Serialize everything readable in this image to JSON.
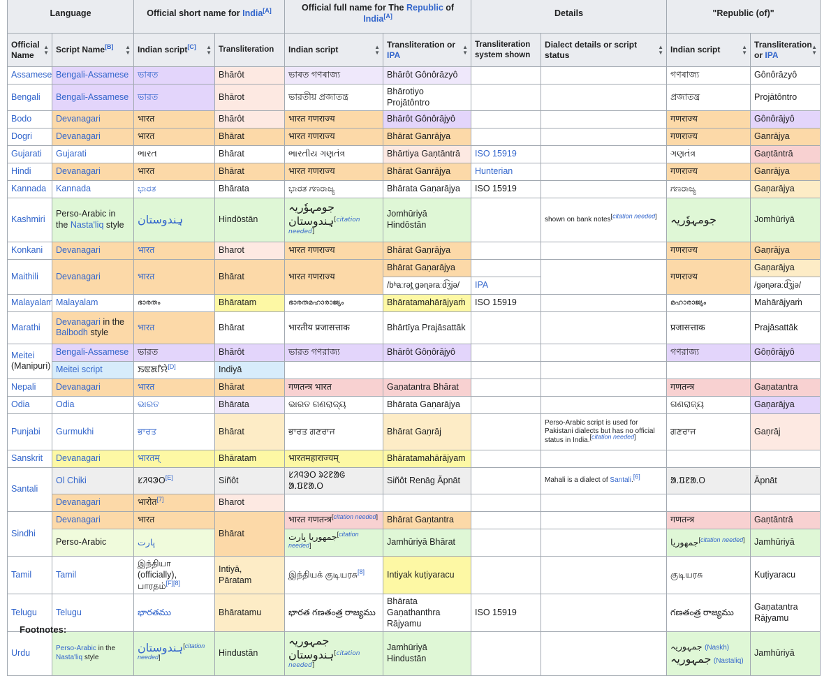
{
  "header": {
    "language": "Language",
    "short_name_prefix": "Official short name for ",
    "india_link": "India",
    "note_a": "[A]",
    "full_name_prefix": "Official full name for The ",
    "republic_link": "Republic",
    "full_name_mid": " of ",
    "details": "Details",
    "republic_of": "\"Republic (of)\"",
    "official_name": "Official Name",
    "script_name": "Script Name",
    "note_b": "[B]",
    "indian_script": "Indian script",
    "note_c": "[C]",
    "transliteration": "Transliteration",
    "translit_or": "Transliteration or ",
    "ipa": "IPA",
    "translit_system": "Transliteration system shown",
    "dialect_details": "Dialect details or script status",
    "translit_or2": "Transliteration or "
  },
  "rows": {
    "assamese": {
      "name": "Assamese",
      "script": "Bengali-Assamese",
      "short": "ভাৰত",
      "short_tr": "Bhārôt",
      "full": "ভাৰত গণৰাজ্য",
      "full_tr": "Bhārôt Gônôrāzyô",
      "rep": "গণৰাজ্য",
      "rep_tr": "Gônôrāzyô"
    },
    "bengali": {
      "name": "Bengali",
      "script": "Bengali-Assamese",
      "short": "ভারত",
      "short_tr": "Bhārot",
      "full": "ভারতীয় প্রজাতন্ত্র",
      "full_tr": "Bhārotiyo Projātôntro",
      "rep": "প্রজাতন্ত্র",
      "rep_tr": "Projātôntro"
    },
    "bodo": {
      "name": "Bodo",
      "script": "Devanagari",
      "short": "भारत",
      "short_tr": "Bhārôt",
      "full": "भारत गणराज्य",
      "full_tr": "Bhārôt Gônôrājyô",
      "rep": "गणराज्य",
      "rep_tr": "Gônôrājyô"
    },
    "dogri": {
      "name": "Dogri",
      "script": "Devanagari",
      "short": "भारत",
      "short_tr": "Bhārat",
      "full": "भारत गणराज्य",
      "full_tr": "Bhārat Ganrājya",
      "rep": "गणराज्य",
      "rep_tr": "Ganrājya"
    },
    "gujarati": {
      "name": "Gujarati",
      "script": "Gujarati",
      "short": "ભારત",
      "short_tr": "Bhārat",
      "full": "ભારતીય ગણતંત્ર",
      "full_tr": "Bhārtiya Gaṇtāntrā",
      "system": "ISO 15919",
      "rep": "ગણતંત્ર",
      "rep_tr": "Gaṇtāntrā"
    },
    "hindi": {
      "name": "Hindi",
      "script": "Devanagari",
      "short": "भारत",
      "short_tr": "Bhārat",
      "full": "भारत गणराज्य",
      "full_tr": "Bhārat Ganrājya",
      "system": "Hunterian",
      "rep": "गणराज्य",
      "rep_tr": "Ganrājya"
    },
    "kannada": {
      "name": "Kannada",
      "script": "Kannada",
      "short": "ಭಾರತ",
      "short_tr": "Bhārata",
      "full": "ಭಾರತ ಗಣರಾಜ್ಯ",
      "full_tr": "Bhārata Gaṇarājya",
      "system": "ISO 15919",
      "rep": "ಗಣರಾಜ್ಯ",
      "rep_tr": "Gaṇarājya"
    },
    "kashmiri": {
      "name": "Kashmiri",
      "script_a": "Perso-Arabic in the ",
      "script_link": "Nasta'liq",
      "script_b": " style",
      "short": "ہِندوستان",
      "short_tr": "Hindōstān",
      "full_a": "جومہوٗریہ",
      "full_b": "ہِندوستان",
      "cn": "citation needed",
      "full_tr": "Jomhūriyā Hindōstān",
      "detail": "shown on bank notes",
      "rep": "جومہوٗریہ",
      "rep_tr": "Jomhūriyā"
    },
    "konkani": {
      "name": "Konkani",
      "script": "Devanagari",
      "short": "भारत",
      "short_tr": "Bharot",
      "full": "भारत गणराज्य",
      "full_tr": "Bhārat Gaṇrājya",
      "rep": "गणराज्य",
      "rep_tr": "Gaṇrājya"
    },
    "maithili": {
      "name": "Maithili",
      "script": "Devanagari",
      "short": "भारत",
      "short_tr": "Bhārat",
      "full": "भारत गणराज्य",
      "full_tr": "Bhārat Gaṇarājya",
      "full_ipa": "/bʱaːrət̪ gəɳəraːd͡ʒjə/",
      "system_ipa": "IPA",
      "rep": "गणराज्य",
      "rep_tr": "Gaṇarājya",
      "rep_ipa": "/gəɳəraːd͡ʒjə/"
    },
    "malayalam": {
      "name": "Malayalam",
      "script": "Malayalam",
      "short": "ഭാരതം",
      "short_tr": "Bhāratam",
      "full": "ഭാരതമഹാരാജ്യം",
      "full_tr": "Bhāratamahārājyaṁ",
      "system": "ISO 15919",
      "rep": "മഹാരാജ്യം",
      "rep_tr": "Mahārājyaṁ"
    },
    "marathi": {
      "name": "Marathi",
      "script": "Devanagari",
      "script_mid": " in the ",
      "script_link2": "Balbodh",
      "script_end": " style",
      "short": "भारत",
      "short_tr": "Bhārat",
      "full": "भारतीय प्रजासत्ताक",
      "full_tr": "Bhārtīya Prajāsattāk",
      "rep": "प्रजासत्ताक",
      "rep_tr": "Prajāsattāk"
    },
    "meitei": {
      "name": "Meitei",
      "name2": "(Manipuri)",
      "script": "Bengali-Assamese",
      "short": "ভারত",
      "short_tr": "Bhārôt",
      "full": "ভারত গণরাজ্য",
      "full_tr": "Bhārôt Gôṇôrājyô",
      "rep": "গণরাজ্য",
      "rep_tr": "Gôṇôrājyô",
      "script2": "Meitei script",
      "short2": "ꯏꯟꯗꯤꯌꯥ",
      "note_d": "[D]",
      "short2_tr": "Indiyā"
    },
    "nepali": {
      "name": "Nepali",
      "script": "Devanagari",
      "short": "भारत",
      "short_tr": "Bhārat",
      "full": "गणतन्त्र भारत",
      "full_tr": "Gaṇatantra Bhārat",
      "rep": "गणतन्त्र",
      "rep_tr": "Gaṇatantra"
    },
    "odia": {
      "name": "Odia",
      "script": "Odia",
      "short": "ଭାରତ",
      "short_tr": "Bhārata",
      "full": "ଭାରତ ଗଣରାଜ୍ୟ",
      "full_tr": "Bhārata Gaṇarājya",
      "rep": "ଗଣରାଜ୍ୟ",
      "rep_tr": "Gaṇarājya"
    },
    "punjabi": {
      "name": "Punjabi",
      "script": "Gurmukhi",
      "short": "ਭਾਰਤ",
      "short_tr": "Bhārat",
      "full": "ਭਾਰਤ ਗਣਰਾਜ",
      "full_tr": "Bhārat Gaṇrāj",
      "detail": "Perso-Arabic script is used for Pakistani dialects but has no official status in India.",
      "rep": "ਗਣਰਾਜ",
      "rep_tr": "Gaṇrāj"
    },
    "sanskrit": {
      "name": "Sanskrit",
      "script": "Devanagari",
      "short": "भारतम्",
      "short_tr": "Bhāratam",
      "full": "भारतमहाराज्यम्",
      "full_tr": "Bhāratamahārājyam"
    },
    "santali": {
      "name": "Santali",
      "script": "Ol Chiki",
      "short": "ᱥᱤᱧᱳᱛ",
      "note_e": "[E]",
      "short_tr": "Siñôt",
      "full": "ᱥᱤᱧᱳᱛ ᱨᱮᱱᱟᱜ ᱟᱹᱯᱱᱟᱹᱛ",
      "full_tr": "Siñôt Renāg Ăpnāt",
      "detail_a": "Mahali is a dialect of ",
      "detail_link": "Santali",
      "note_6": "[6]",
      "rep": "ᱟᱹᱯᱱᱟᱹᱛ",
      "rep_tr": "Ăpnāt",
      "script2": "Devanagari",
      "short2": "भारोत",
      "note_7": "[7]",
      "short2_tr": "Bharot"
    },
    "sindhi": {
      "name": "Sindhi",
      "script": "Devanagari",
      "short": "भारत",
      "short_tr": "Bhārat",
      "full": "भारत गणतन्त्र",
      "full_tr": "Bhārat Gaṇtantra",
      "rep": "गणतन्त्र",
      "rep_tr": "Gaṇtāntrā",
      "script2": "Perso-Arabic",
      "short2": "ڀارت",
      "full2": "جمهوريا ڀارت",
      "full2_tr": "Jamhūriyā Bhārat",
      "rep2": "جمهوريا",
      "rep2_tr": "Jamhūriyā"
    },
    "tamil": {
      "name": "Tamil",
      "script": "Tamil",
      "short_a": "இந்தியா (officially),",
      "short_b": "பாரதம்",
      "note_f": "[F]",
      "note_8": "[8]",
      "short_tr_a": "Intiyā,",
      "short_tr_b": "Pāratam",
      "full": "இந்தியக் குடியரசு",
      "full_tr": "Intiyak kuṭiyaracu",
      "rep": "குடியரசு",
      "rep_tr": "Kuṭiyaracu"
    },
    "telugu": {
      "name": "Telugu",
      "script": "Telugu",
      "short": "భారతము",
      "short_tr": "Bhāratamu",
      "full": "భారత గణతంత్ర రాజ్యము",
      "full_tr_a": "Bhārata Gaṇathanthra",
      "full_tr_b": "Rājyamu",
      "system": "ISO 15919",
      "rep": "గణతంత్ర రాజ్యము",
      "rep_tr_a": "Gaṇatantra",
      "rep_tr_b": "Rājyamu"
    },
    "urdu": {
      "name": "Urdu",
      "script_link": "Perso-Arabic",
      "script_mid": " in the ",
      "script_link2": "Nasta'liq",
      "script_end": " style",
      "short": "ہندوستان",
      "short_tr": "Hindustān",
      "full_a": "جمہوریہ",
      "full_b": "ہندوستان",
      "full_tr": "Jamhūriyā Hindustān",
      "rep_a": "جمہوریہ",
      "rep_a_note": "(Naskh)",
      "rep_b": "جمہوریہ",
      "rep_b_note": "(Nastaliq)",
      "rep_tr": "Jamhūriyā"
    }
  },
  "citation_needed": "citation needed",
  "footnotes_label": "Footnotes:",
  "colors": {
    "orange": "#fcd9a8",
    "violet": "#e3d5fb",
    "green": "#dff7d6",
    "pink": "#f8d1d1",
    "yellow": "#fdf8a4",
    "peach": "#fde9e2",
    "blue": "#d7ecfb",
    "link": "#3366cc",
    "header": "#eaecf0"
  }
}
